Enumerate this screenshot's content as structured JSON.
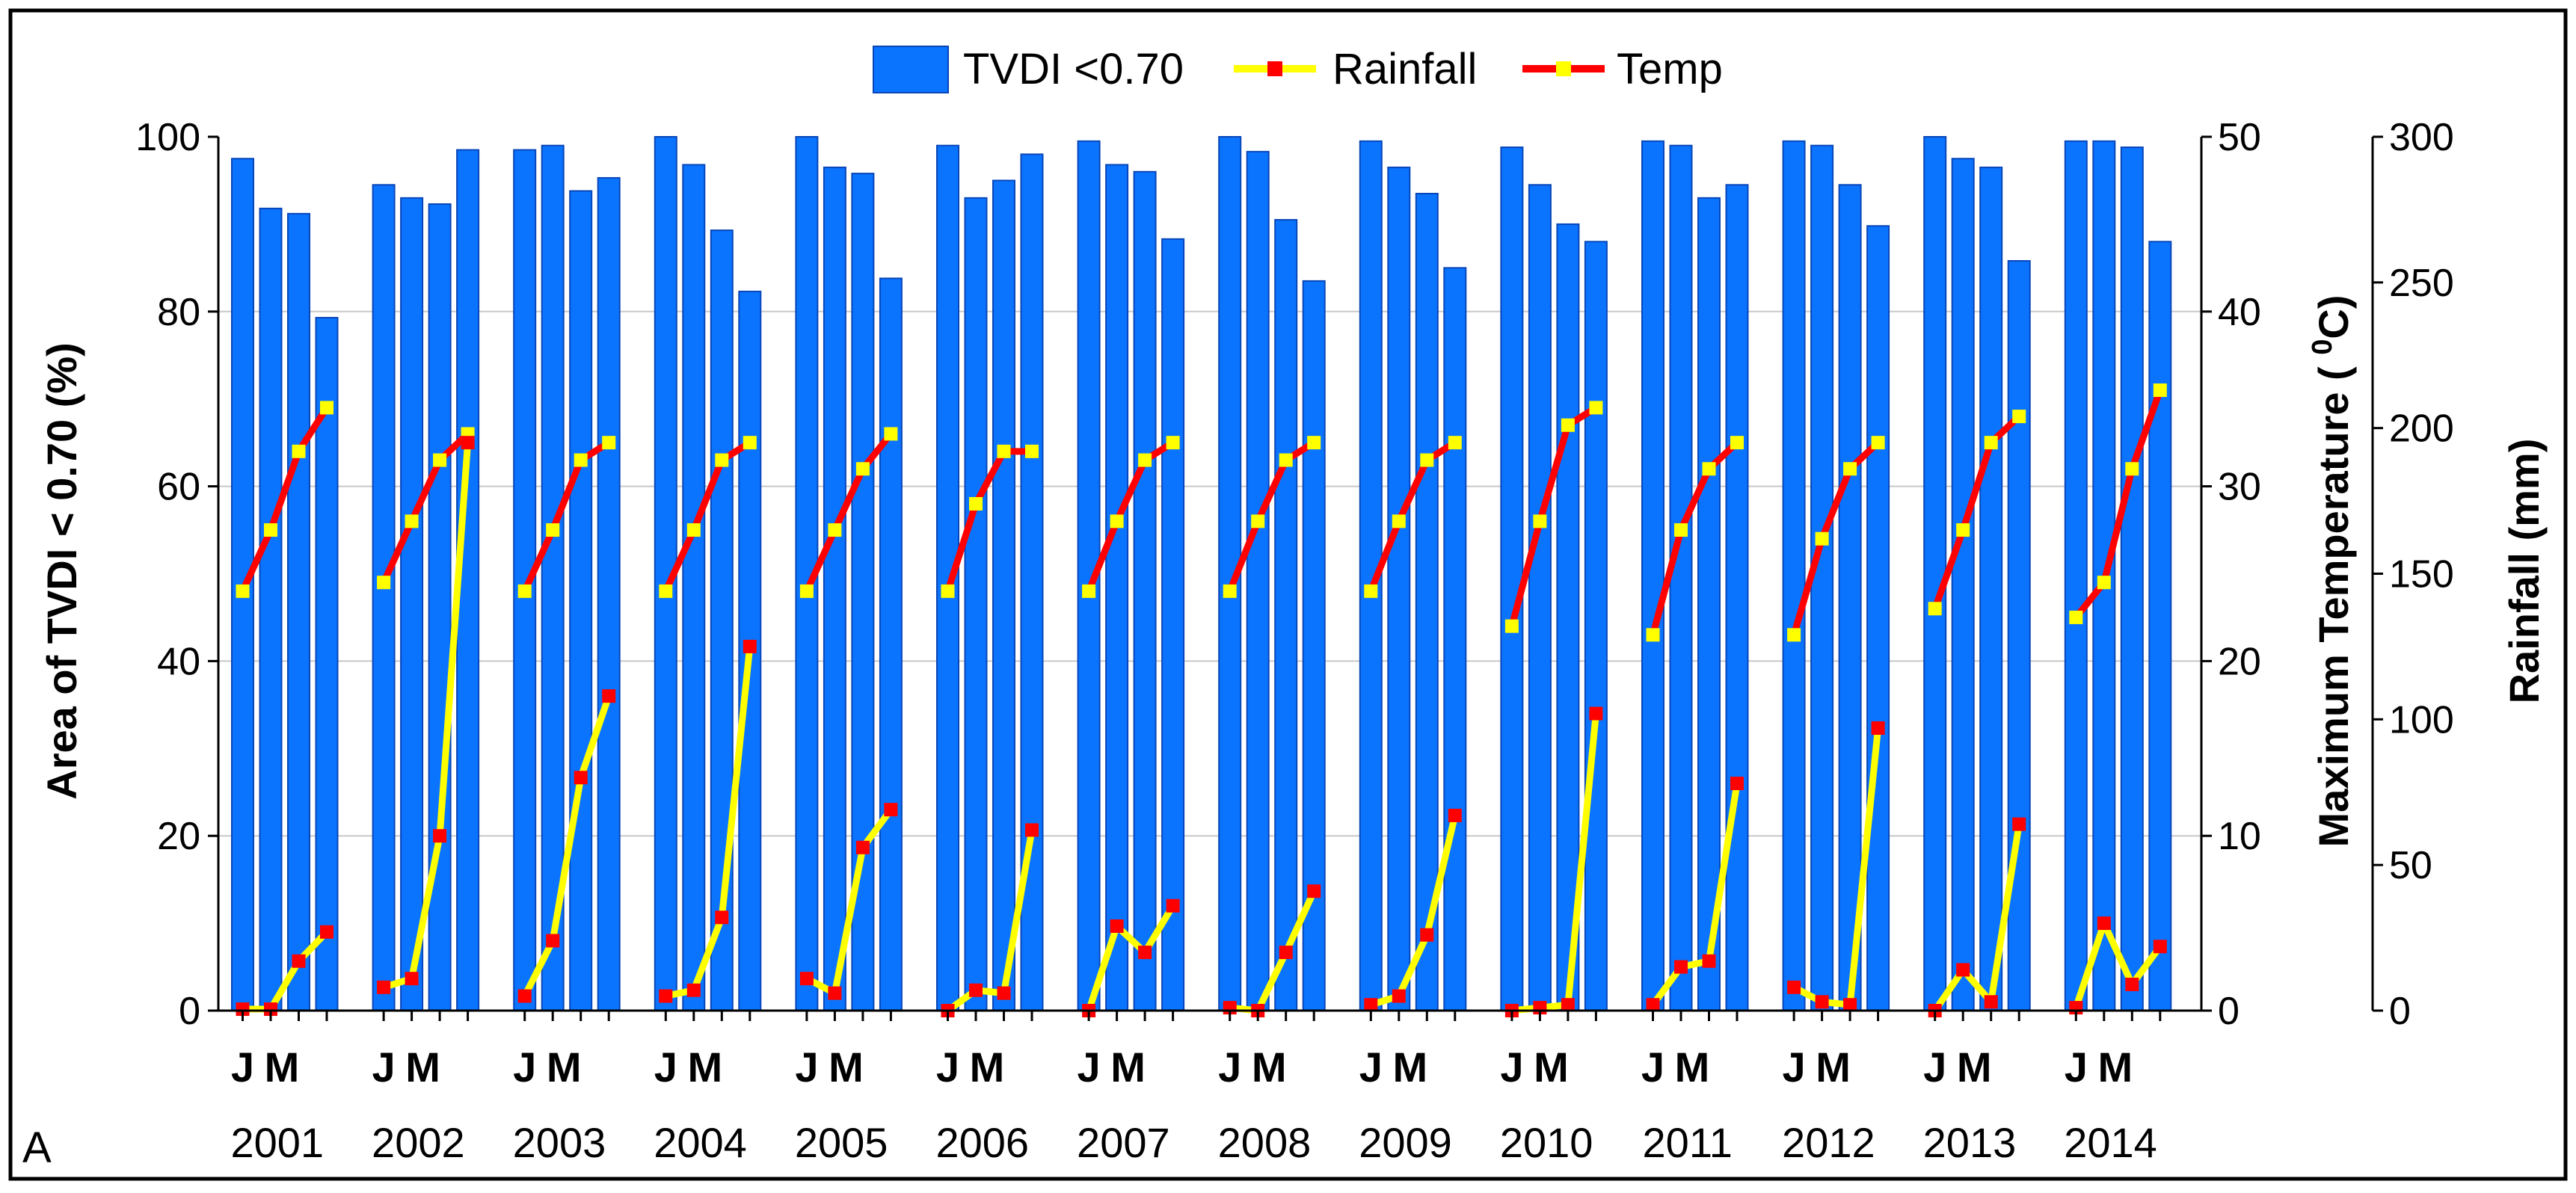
{
  "chart_data": {
    "type": "bar+line",
    "panel_label": "A",
    "legend": {
      "placement": "top-center",
      "entries": [
        "TVDI <0.70",
        "Rainfall",
        "Temp"
      ]
    },
    "years": [
      "2001",
      "2002",
      "2003",
      "2004",
      "2005",
      "2006",
      "2007",
      "2008",
      "2009",
      "2010",
      "2011",
      "2012",
      "2013",
      "2014"
    ],
    "month_labels": [
      "J",
      "M"
    ],
    "y_left": {
      "label": "Area of TVDI < 0.70 (%)",
      "range": [
        0,
        100
      ],
      "ticks": [
        "0",
        "20",
        "40",
        "60",
        "80",
        "100"
      ]
    },
    "y_right_temp": {
      "label_prefix": "Maximum Temperature ( ",
      "label_sup": "0",
      "label_unit": "C)",
      "range": [
        0,
        50
      ],
      "ticks": [
        "0",
        "10",
        "20",
        "30",
        "40",
        "50"
      ]
    },
    "y_right_rain": {
      "label": "Rainfall (mm)",
      "range": [
        0,
        300
      ],
      "ticks": [
        "0",
        "50",
        "100",
        "150",
        "200",
        "250",
        "300"
      ]
    },
    "series": [
      {
        "name": "TVDI <0.70",
        "axis": "left",
        "color": "#0a74ff",
        "values": [
          [
            97.5,
            91.8,
            91.2,
            79.3
          ],
          [
            94.5,
            93.0,
            92.3,
            98.5
          ],
          [
            98.5,
            99.0,
            93.8,
            95.3
          ],
          [
            100,
            96.8,
            89.3,
            82.3
          ],
          [
            100,
            96.5,
            95.8,
            83.8
          ],
          [
            99.0,
            93.0,
            95.0,
            98.0
          ],
          [
            99.5,
            96.8,
            96.0,
            88.3
          ],
          [
            100,
            98.3,
            90.5,
            83.5
          ],
          [
            99.5,
            96.5,
            93.5,
            85.0
          ],
          [
            98.8,
            94.5,
            90.0,
            88.0
          ],
          [
            99.5,
            99.0,
            93.0,
            94.5
          ],
          [
            99.5,
            99.0,
            94.5,
            89.8
          ],
          [
            100,
            97.5,
            96.5,
            85.8
          ],
          [
            99.5,
            99.5,
            98.8,
            88.0
          ]
        ]
      },
      {
        "name": "Temp",
        "axis": "temp",
        "color": "#ff0000",
        "values": [
          [
            24.0,
            27.5,
            32.0,
            34.5
          ],
          [
            24.5,
            28.0,
            31.5,
            33.0
          ],
          [
            24.0,
            27.5,
            31.5,
            32.5
          ],
          [
            24.0,
            27.5,
            31.5,
            32.5
          ],
          [
            24.0,
            27.5,
            31.0,
            33.0
          ],
          [
            24.0,
            29.0,
            32.0,
            32.0
          ],
          [
            24.0,
            28.0,
            31.5,
            32.5
          ],
          [
            24.0,
            28.0,
            31.5,
            32.5
          ],
          [
            24.0,
            28.0,
            31.5,
            32.5
          ],
          [
            22.0,
            28.0,
            33.5,
            34.5
          ],
          [
            21.5,
            27.5,
            31.0,
            32.5
          ],
          [
            21.5,
            27.0,
            31.0,
            32.5
          ],
          [
            23.0,
            27.5,
            32.5,
            34.0
          ],
          [
            22.5,
            24.5,
            31.0,
            35.5
          ]
        ]
      },
      {
        "name": "Rainfall",
        "axis": "rain",
        "color": "#ffff00",
        "values": [
          [
            0.5,
            0.5,
            17,
            27
          ],
          [
            8,
            11,
            60,
            195
          ],
          [
            5,
            24,
            80,
            108
          ],
          [
            5,
            7,
            32,
            125
          ],
          [
            11,
            6,
            56,
            69
          ],
          [
            0,
            7,
            6,
            62
          ],
          [
            0,
            29,
            20,
            36
          ],
          [
            1,
            0,
            20,
            41
          ],
          [
            2,
            5,
            26,
            67
          ],
          [
            0,
            1,
            2,
            102
          ],
          [
            2,
            15,
            17,
            78
          ],
          [
            8,
            3,
            2,
            97
          ],
          [
            0,
            14,
            3,
            64
          ],
          [
            1,
            30,
            9,
            22
          ]
        ]
      }
    ]
  }
}
